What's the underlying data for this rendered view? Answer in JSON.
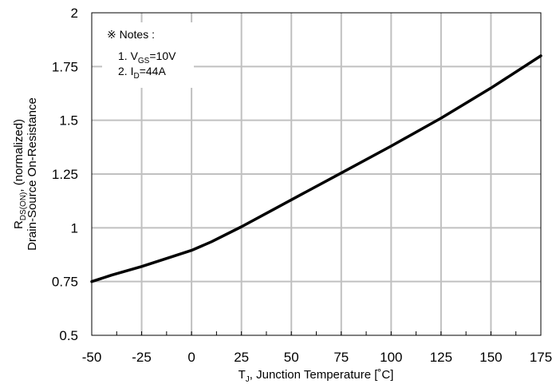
{
  "chart_data": {
    "type": "line",
    "title": "",
    "xlabel": {
      "main": "T",
      "sub": "J",
      "rest": ", Junction Temperature [˚C]"
    },
    "ylabel": {
      "line1_main": "R",
      "line1_sub": "DS(ON)",
      "line1_rest": ", (normalized)",
      "line2": "Drain-Source On-Resistance"
    },
    "xlim": [
      -50,
      175
    ],
    "ylim": [
      0.5,
      2
    ],
    "x_ticks": [
      "-50",
      "-25",
      "0",
      "25",
      "50",
      "75",
      "100",
      "125",
      "150",
      "175"
    ],
    "y_ticks": [
      "0.5",
      "0.75",
      "1",
      "1.25",
      "1.5",
      "1.75",
      "2"
    ],
    "grid": true,
    "series": [
      {
        "x": [
          -50,
          -40,
          -25,
          -10,
          0,
          10,
          25,
          40,
          50,
          75,
          100,
          125,
          150,
          175
        ],
        "y": [
          0.75,
          0.78,
          0.82,
          0.865,
          0.895,
          0.935,
          1.005,
          1.08,
          1.13,
          1.255,
          1.38,
          1.51,
          1.65,
          1.8
        ],
        "color": "#000000"
      }
    ],
    "notes": {
      "header": "※ Notes :",
      "items": [
        {
          "prefix": "1. V",
          "sub": "GS",
          "suffix": "=10V"
        },
        {
          "prefix": "2. I",
          "sub": "D",
          "suffix": "=44A"
        }
      ]
    }
  }
}
